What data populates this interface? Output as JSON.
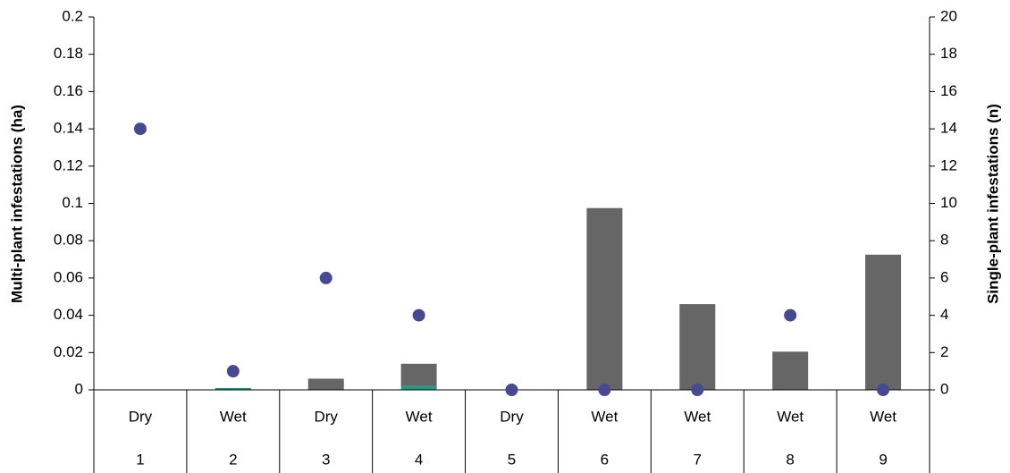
{
  "chart_data": {
    "type": "bar",
    "y_label": "Multi-plant infestations (ha)",
    "y2_label": "Single-plant infestations (n)",
    "groups": [
      "Dry",
      "Wet",
      "Dry",
      "Wet",
      "Dry",
      "Wet",
      "Wet",
      "Wet",
      "Wet"
    ],
    "categories": [
      "1",
      "2",
      "3",
      "4",
      "5",
      "6",
      "7",
      "8",
      "9"
    ],
    "series": [
      {
        "type": "bar",
        "color": "#1a9e8a",
        "values": [
          0,
          0.001,
          0,
          0.002,
          0,
          0,
          0,
          0,
          0
        ]
      },
      {
        "type": "bar",
        "color": "#666666",
        "values": [
          0,
          0,
          0.006,
          0.012,
          0,
          0.0975,
          0.046,
          0.0205,
          0.0725
        ]
      },
      {
        "type": "scatter",
        "axis": "y2",
        "color": "#454a93",
        "values": [
          14,
          1,
          6,
          4,
          0,
          0,
          0,
          4,
          0
        ]
      }
    ],
    "ylim": [
      0,
      0.2
    ],
    "yticks": [
      0,
      0.02,
      0.04,
      0.06,
      0.08,
      0.1,
      0.12,
      0.14,
      0.16,
      0.18,
      0.2
    ],
    "y2lim": [
      0,
      20
    ],
    "y2ticks": [
      0,
      2,
      4,
      6,
      8,
      10,
      12,
      14,
      16,
      18,
      20
    ],
    "grid": false
  }
}
